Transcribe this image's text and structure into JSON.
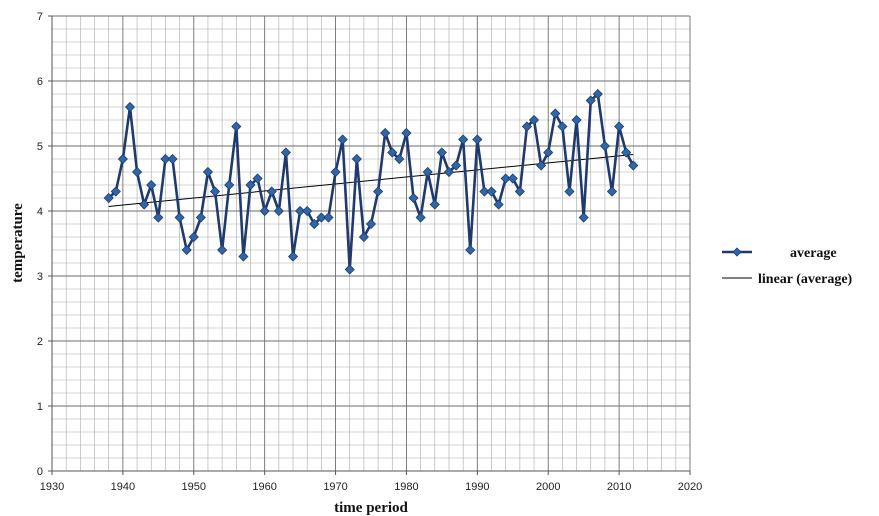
{
  "chart_data": {
    "type": "line",
    "title": "",
    "xlabel": "time period",
    "ylabel": "temperature",
    "xlim": [
      1930,
      2020
    ],
    "ylim": [
      0,
      7
    ],
    "x_ticks": [
      1930,
      1940,
      1950,
      1960,
      1970,
      1980,
      1990,
      2000,
      2010,
      2020
    ],
    "y_ticks": [
      0,
      1,
      2,
      3,
      4,
      5,
      6,
      7
    ],
    "grid": true,
    "legend_position": "right",
    "series": [
      {
        "name": "average",
        "color": "#1f3a6e",
        "marker": "diamond",
        "x": [
          1938,
          1939,
          1940,
          1941,
          1942,
          1943,
          1944,
          1945,
          1946,
          1947,
          1948,
          1949,
          1950,
          1951,
          1952,
          1953,
          1954,
          1955,
          1956,
          1957,
          1958,
          1959,
          1960,
          1961,
          1962,
          1963,
          1964,
          1965,
          1966,
          1967,
          1968,
          1969,
          1970,
          1971,
          1972,
          1973,
          1974,
          1975,
          1976,
          1977,
          1978,
          1979,
          1980,
          1981,
          1982,
          1983,
          1984,
          1985,
          1986,
          1987,
          1988,
          1989,
          1990,
          1991,
          1992,
          1993,
          1994,
          1995,
          1996,
          1997,
          1998,
          1999,
          2000,
          2001,
          2002,
          2003,
          2004,
          2005,
          2006,
          2007,
          2008,
          2009,
          2010,
          2011,
          2012
        ],
        "y": [
          4.2,
          4.3,
          4.8,
          5.6,
          4.6,
          4.1,
          4.4,
          3.9,
          4.8,
          4.8,
          3.9,
          3.4,
          3.6,
          3.9,
          4.6,
          4.3,
          3.4,
          4.4,
          5.3,
          3.3,
          4.4,
          4.5,
          4.0,
          4.3,
          4.0,
          4.9,
          3.3,
          4.0,
          4.0,
          3.8,
          3.9,
          3.9,
          4.6,
          5.1,
          3.1,
          4.8,
          3.6,
          3.8,
          4.3,
          5.2,
          4.9,
          4.8,
          5.2,
          4.2,
          3.9,
          4.6,
          4.1,
          4.9,
          4.6,
          4.7,
          5.1,
          3.4,
          5.1,
          4.3,
          4.3,
          4.1,
          4.5,
          4.5,
          4.3,
          5.3,
          5.4,
          4.7,
          4.9,
          5.5,
          5.3,
          4.3,
          5.4,
          3.9,
          5.7,
          5.8,
          5.0,
          4.3,
          5.3,
          4.9,
          4.7
        ]
      },
      {
        "name": "linear (average)",
        "color": "#000000",
        "x": [
          1938,
          2012
        ],
        "y": [
          4.07,
          4.87
        ]
      }
    ]
  }
}
